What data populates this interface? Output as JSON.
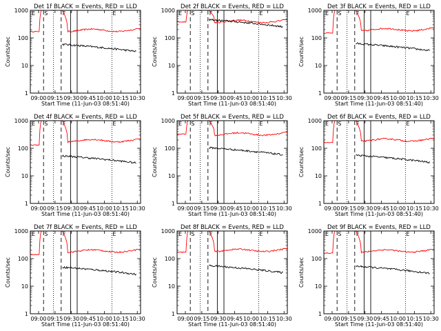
{
  "chart_data": [
    {
      "type": "line",
      "title": "Det 1f BLACK = Events, RED = LLD",
      "xlabel": "Start Time (11-Jun-03 08:51:40)",
      "ylabel": "Counts/sec",
      "xticks": [
        "09:00",
        "09:15",
        "09:30",
        "09:45",
        "10:00",
        "10:15",
        "10:30"
      ],
      "yticks": [
        "1",
        "10",
        "100",
        "1000"
      ],
      "ylim": [
        1,
        1000
      ],
      "yscale": "log",
      "markers": [
        "E",
        "S",
        "F",
        "E"
      ],
      "series": [
        {
          "name": "LLD",
          "color": "#ff0000",
          "base_before": 170,
          "peak": 1000,
          "level_after": 190
        },
        {
          "name": "Events",
          "color": "#000000",
          "level_after": 42
        }
      ]
    },
    {
      "type": "line",
      "title": "Det 2f BLACK = Events, RED = LLD",
      "xlabel": "Start Time (11-Jun-03 08:51:40)",
      "ylabel": "Counts/sec",
      "xticks": [
        "09:00",
        "09:15",
        "09:30",
        "09:45",
        "10:00",
        "10:15",
        "10:30"
      ],
      "yticks": [
        "1",
        "10",
        "100",
        "1000"
      ],
      "ylim": [
        1,
        1000
      ],
      "yscale": "log",
      "markers": [
        "E",
        "S",
        "F",
        "E"
      ],
      "series": [
        {
          "name": "LLD",
          "color": "#ff0000",
          "base_before": 380,
          "peak": 1000,
          "level_after": 400
        },
        {
          "name": "Events",
          "color": "#000000",
          "level_after": 330
        }
      ]
    },
    {
      "type": "line",
      "title": "Det 3f BLACK = Events, RED = LLD",
      "xlabel": "Start Time (11-Jun-03 08:51:40)",
      "ylabel": "Counts/sec",
      "xticks": [
        "09:00",
        "09:15",
        "09:30",
        "09:45",
        "10:00",
        "10:15",
        "10:30"
      ],
      "yticks": [
        "1",
        "10",
        "100",
        "1000"
      ],
      "ylim": [
        1,
        1000
      ],
      "yscale": "log",
      "markers": [
        "E",
        "S",
        "F",
        "E"
      ],
      "series": [
        {
          "name": "LLD",
          "color": "#ff0000",
          "base_before": 150,
          "peak": 1000,
          "level_after": 200
        },
        {
          "name": "Events",
          "color": "#000000",
          "level_after": 45
        }
      ]
    },
    {
      "type": "line",
      "title": "Det 4f BLACK = Events, RED = LLD",
      "xlabel": "Start Time (11-Jun-03 08:51:40)",
      "ylabel": "Counts/sec",
      "xticks": [
        "09:00",
        "09:15",
        "09:30",
        "09:45",
        "10:00",
        "10:15",
        "10:30"
      ],
      "yticks": [
        "1",
        "10",
        "100",
        "1000"
      ],
      "ylim": [
        1,
        1000
      ],
      "yscale": "log",
      "markers": [
        "E",
        "S",
        "F",
        "E"
      ],
      "series": [
        {
          "name": "LLD",
          "color": "#ff0000",
          "base_before": 130,
          "peak": 1000,
          "level_after": 190
        },
        {
          "name": "Events",
          "color": "#000000",
          "level_after": 38
        }
      ]
    },
    {
      "type": "line",
      "title": "Det 5f BLACK = Events, RED = LLD",
      "xlabel": "Start Time (11-Jun-03 08:51:40)",
      "ylabel": "Counts/sec",
      "xticks": [
        "09:00",
        "09:15",
        "09:30",
        "09:45",
        "10:00",
        "10:15",
        "10:30"
      ],
      "yticks": [
        "1",
        "10",
        "100",
        "1000"
      ],
      "ylim": [
        1,
        1000
      ],
      "yscale": "log",
      "markers": [
        "E",
        "S",
        "F",
        "E"
      ],
      "series": [
        {
          "name": "LLD",
          "color": "#ff0000",
          "base_before": 330,
          "peak": 1000,
          "level_after": 330
        },
        {
          "name": "Events",
          "color": "#000000",
          "level_after": 75
        }
      ]
    },
    {
      "type": "line",
      "title": "Det 6f BLACK = Events, RED = LLD",
      "xlabel": "Start Time (11-Jun-03 08:51:40)",
      "ylabel": "Counts/sec",
      "xticks": [
        "09:00",
        "09:15",
        "09:30",
        "09:45",
        "10:00",
        "10:15",
        "10:30"
      ],
      "yticks": [
        "1",
        "10",
        "100",
        "1000"
      ],
      "ylim": [
        1,
        1000
      ],
      "yscale": "log",
      "markers": [
        "E",
        "S",
        "F",
        "E"
      ],
      "series": [
        {
          "name": "LLD",
          "color": "#ff0000",
          "base_before": 160,
          "peak": 1000,
          "level_after": 200
        },
        {
          "name": "Events",
          "color": "#000000",
          "level_after": 40
        }
      ]
    },
    {
      "type": "line",
      "title": "Det 7f BLACK = Events, RED = LLD",
      "xlabel": "Start Time (11-Jun-03 08:51:40)",
      "ylabel": "Counts/sec",
      "xticks": [
        "09:00",
        "09:15",
        "09:30",
        "09:45",
        "10:00",
        "10:15",
        "10:30"
      ],
      "yticks": [
        "1",
        "10",
        "100",
        "1000"
      ],
      "ylim": [
        1,
        1000
      ],
      "yscale": "log",
      "markers": [
        "E",
        "S",
        "F",
        "E"
      ],
      "series": [
        {
          "name": "LLD",
          "color": "#ff0000",
          "base_before": 140,
          "peak": 1000,
          "level_after": 190
        },
        {
          "name": "Events",
          "color": "#000000",
          "level_after": 35
        }
      ]
    },
    {
      "type": "line",
      "title": "Det 8f BLACK = Events, RED = LLD",
      "xlabel": "Start Time (11-Jun-03 08:51:40)",
      "ylabel": "Counts/sec",
      "xticks": [
        "09:00",
        "09:15",
        "09:30",
        "09:45",
        "10:00",
        "10:15",
        "10:30"
      ],
      "yticks": [
        "1",
        "10",
        "100",
        "1000"
      ],
      "ylim": [
        1,
        1000
      ],
      "yscale": "log",
      "markers": [
        "E",
        "S",
        "F",
        "E"
      ],
      "series": [
        {
          "name": "LLD",
          "color": "#ff0000",
          "base_before": 170,
          "peak": 1000,
          "level_after": 200
        },
        {
          "name": "Events",
          "color": "#000000",
          "level_after": 40
        }
      ]
    },
    {
      "type": "line",
      "title": "Det 9f BLACK = Events, RED = LLD",
      "xlabel": "Start Time (11-Jun-03 08:51:40)",
      "ylabel": "Counts/sec",
      "xticks": [
        "09:00",
        "09:15",
        "09:30",
        "09:45",
        "10:00",
        "10:15",
        "10:30"
      ],
      "yticks": [
        "1",
        "10",
        "100",
        "1000"
      ],
      "ylim": [
        1,
        1000
      ],
      "yscale": "log",
      "markers": [
        "E",
        "S",
        "F",
        "E"
      ],
      "series": [
        {
          "name": "LLD",
          "color": "#ff0000",
          "base_before": 160,
          "peak": 1000,
          "level_after": 190
        },
        {
          "name": "Events",
          "color": "#000000",
          "level_after": 38
        }
      ]
    }
  ]
}
